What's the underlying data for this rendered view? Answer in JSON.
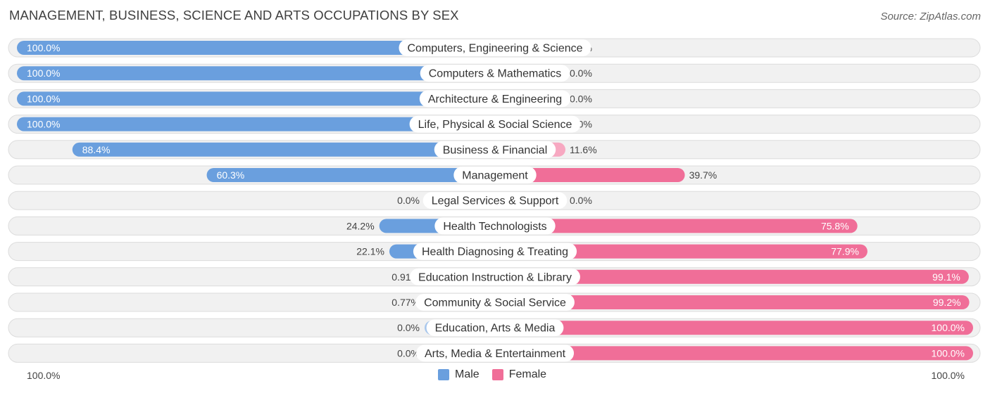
{
  "title": "MANAGEMENT, BUSINESS, SCIENCE AND ARTS OCCUPATIONS BY SEX",
  "source": "Source: ZipAtlas.com",
  "axis": {
    "left_label": "100.0%",
    "right_label": "100.0%"
  },
  "legend": [
    {
      "label": "Male",
      "color": "#6a9fde"
    },
    {
      "label": "Female",
      "color": "#f06e98"
    }
  ],
  "colors": {
    "male_strong": "#6a9fde",
    "male_light": "#a7c6ec",
    "female_strong": "#f06e98",
    "female_light": "#f7a8c1",
    "track": "#f1f1f1",
    "track_border": "#dcdcdc"
  },
  "chart_data": {
    "type": "bar",
    "orientation": "horizontal-diverging",
    "xlim": [
      -100,
      100
    ],
    "categories": [
      "Computers, Engineering & Science",
      "Computers & Mathematics",
      "Architecture & Engineering",
      "Life, Physical & Social Science",
      "Business & Financial",
      "Management",
      "Legal Services & Support",
      "Health Technologists",
      "Health Diagnosing & Treating",
      "Education Instruction & Library",
      "Community & Social Service",
      "Education, Arts & Media",
      "Arts, Media & Entertainment"
    ],
    "series": [
      {
        "name": "Male",
        "values": [
          100.0,
          100.0,
          100.0,
          100.0,
          88.4,
          60.3,
          0.0,
          24.2,
          22.1,
          0.91,
          0.77,
          0.0,
          0.0
        ],
        "labels": [
          "100.0%",
          "100.0%",
          "100.0%",
          "100.0%",
          "88.4%",
          "60.3%",
          "0.0%",
          "24.2%",
          "22.1%",
          "0.91%",
          "0.77%",
          "0.0%",
          "0.0%"
        ]
      },
      {
        "name": "Female",
        "values": [
          0.0,
          0.0,
          0.0,
          0.0,
          11.6,
          39.7,
          0.0,
          75.8,
          77.9,
          99.1,
          99.2,
          100.0,
          100.0
        ],
        "labels": [
          "0.0%",
          "0.0%",
          "0.0%",
          "0.0%",
          "11.6%",
          "39.7%",
          "0.0%",
          "75.8%",
          "77.9%",
          "99.1%",
          "99.2%",
          "100.0%",
          "100.0%"
        ]
      }
    ]
  }
}
